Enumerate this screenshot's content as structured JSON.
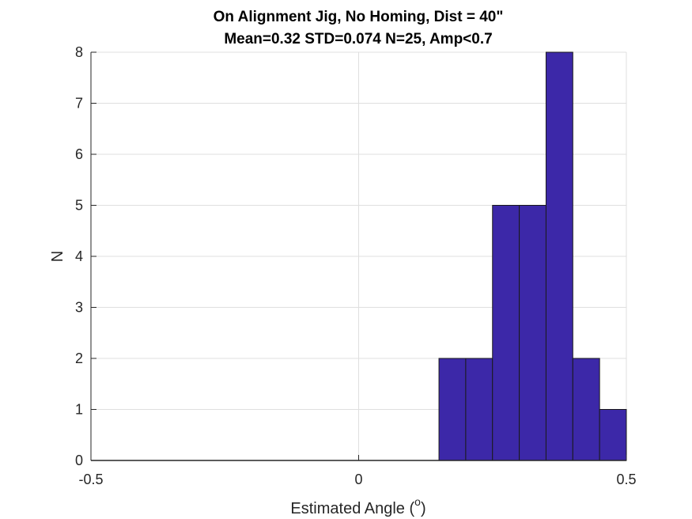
{
  "chart_data": {
    "type": "bar",
    "title": "On Alignment Jig, No Homing, Dist = 40\"",
    "subtitle": "Mean=0.32 STD=0.074 N=25, Amp<0.7",
    "xlabel": "Estimated Angle (",
    "xlabel_sup": "o",
    "xlabel_close": ")",
    "ylabel": "N",
    "xlim": [
      -0.5,
      0.5
    ],
    "ylim": [
      0,
      8
    ],
    "xticks": [
      -0.5,
      0,
      0.5
    ],
    "xtick_labels": [
      "-0.5",
      "0",
      "0.5"
    ],
    "yticks": [
      0,
      1,
      2,
      3,
      4,
      5,
      6,
      7,
      8
    ],
    "ytick_labels": [
      "0",
      "1",
      "2",
      "3",
      "4",
      "5",
      "6",
      "7",
      "8"
    ],
    "grid": true,
    "bin_edges": [
      0.15,
      0.2,
      0.25,
      0.3,
      0.35,
      0.4,
      0.45,
      0.5
    ],
    "values": [
      2,
      2,
      5,
      5,
      8,
      2,
      1
    ],
    "bar_color": "#3c28a8",
    "edge_color": "#1a1a1a"
  }
}
